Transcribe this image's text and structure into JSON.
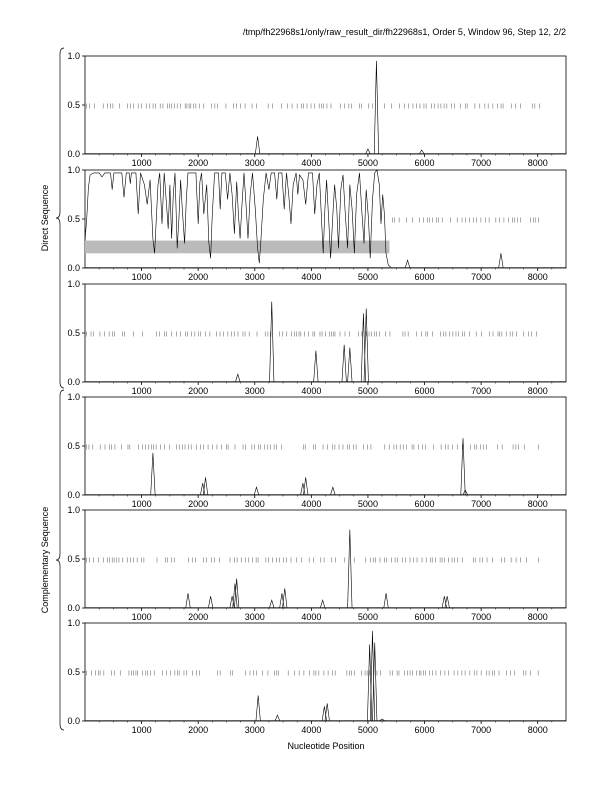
{
  "title": "/tmp/fh22968s1/only/raw_result_dir/fh22968s1, Order 5, Window 96, Step 12, 2/2",
  "groups": [
    {
      "label": "Direct Sequence"
    },
    {
      "label": "Complementary Sequence"
    }
  ],
  "chart_data": {
    "type": "line",
    "xlabel": "Nucleotide Position",
    "xlim": [
      0,
      8500
    ],
    "ylim": [
      0,
      1
    ],
    "x_ticks": [
      1000,
      2000,
      3000,
      4000,
      5000,
      6000,
      7000,
      8000
    ],
    "x_tick_labels": [
      "1000",
      "2000",
      "3000",
      "4000",
      "5000",
      "6000",
      "7000",
      "8000"
    ],
    "y_ticks": [
      0,
      0.5,
      1
    ],
    "y_tick_labels": [
      "0.0",
      "0.5",
      "1.0"
    ],
    "line_color": "#000000",
    "mark_color": "#555555",
    "band_color": "#bbbbbb",
    "panels": [
      {
        "group": "Direct Sequence",
        "peaks": [
          [
            3050,
            0.18
          ],
          [
            5150,
            0.95
          ],
          [
            5000,
            0.05
          ],
          [
            5950,
            0.04
          ]
        ],
        "mark_row_y": 0.49,
        "mark_ranges": [
          [
            0,
            5100
          ],
          [
            5200,
            8050
          ]
        ]
      },
      {
        "group": "Direct Sequence",
        "profile": [
          [
            0,
            0.28
          ],
          [
            30,
            0.5
          ],
          [
            60,
            0.82
          ],
          [
            90,
            0.95
          ],
          [
            150,
            0.97
          ],
          [
            250,
            0.97
          ],
          [
            300,
            0.93
          ],
          [
            350,
            0.97
          ],
          [
            450,
            0.97
          ],
          [
            480,
            0.8
          ],
          [
            510,
            0.97
          ],
          [
            650,
            0.97
          ],
          [
            690,
            0.72
          ],
          [
            730,
            0.97
          ],
          [
            780,
            0.97
          ],
          [
            800,
            0.86
          ],
          [
            820,
            0.97
          ],
          [
            900,
            0.97
          ],
          [
            940,
            0.55
          ],
          [
            980,
            0.97
          ],
          [
            1050,
            0.85
          ],
          [
            1100,
            0.65
          ],
          [
            1150,
            0.9
          ],
          [
            1200,
            0.3
          ],
          [
            1230,
            0.15
          ],
          [
            1260,
            0.5
          ],
          [
            1290,
            0.85
          ],
          [
            1320,
            0.97
          ],
          [
            1360,
            0.45
          ],
          [
            1400,
            0.97
          ],
          [
            1440,
            0.65
          ],
          [
            1470,
            0.4
          ],
          [
            1500,
            0.85
          ],
          [
            1530,
            0.3
          ],
          [
            1560,
            0.75
          ],
          [
            1590,
            0.97
          ],
          [
            1630,
            0.2
          ],
          [
            1660,
            0.5
          ],
          [
            1690,
            0.9
          ],
          [
            1720,
            0.6
          ],
          [
            1760,
            0.25
          ],
          [
            1790,
            0.7
          ],
          [
            1820,
            0.97
          ],
          [
            1900,
            0.97
          ],
          [
            1960,
            0.97
          ],
          [
            2000,
            0.45
          ],
          [
            2030,
            0.88
          ],
          [
            2060,
            0.97
          ],
          [
            2100,
            0.55
          ],
          [
            2150,
            0.85
          ],
          [
            2190,
            0.25
          ],
          [
            2220,
            0.1
          ],
          [
            2250,
            0.55
          ],
          [
            2290,
            0.97
          ],
          [
            2360,
            0.97
          ],
          [
            2390,
            0.6
          ],
          [
            2420,
            0.97
          ],
          [
            2480,
            0.97
          ],
          [
            2520,
            0.7
          ],
          [
            2560,
            0.97
          ],
          [
            2600,
            0.75
          ],
          [
            2640,
            0.35
          ],
          [
            2680,
            0.88
          ],
          [
            2710,
            0.55
          ],
          [
            2740,
            0.3
          ],
          [
            2780,
            0.7
          ],
          [
            2810,
            0.97
          ],
          [
            2850,
            0.6
          ],
          [
            2880,
            0.3
          ],
          [
            2920,
            0.75
          ],
          [
            2960,
            0.97
          ],
          [
            3010,
            0.6
          ],
          [
            3050,
            0.2
          ],
          [
            3080,
            0.05
          ],
          [
            3110,
            0.3
          ],
          [
            3150,
            0.7
          ],
          [
            3200,
            0.97
          ],
          [
            3250,
            0.8
          ],
          [
            3290,
            0.97
          ],
          [
            3350,
            0.97
          ],
          [
            3390,
            0.7
          ],
          [
            3420,
            0.97
          ],
          [
            3480,
            0.97
          ],
          [
            3520,
            0.6
          ],
          [
            3560,
            0.97
          ],
          [
            3600,
            0.75
          ],
          [
            3640,
            0.45
          ],
          [
            3680,
            0.85
          ],
          [
            3730,
            0.97
          ],
          [
            3760,
            0.75
          ],
          [
            3790,
            0.95
          ],
          [
            3850,
            0.9
          ],
          [
            3900,
            0.65
          ],
          [
            3950,
            0.97
          ],
          [
            4020,
            0.97
          ],
          [
            4060,
            0.55
          ],
          [
            4100,
            0.85
          ],
          [
            4140,
            0.97
          ],
          [
            4180,
            0.5
          ],
          [
            4210,
            0.15
          ],
          [
            4240,
            0.6
          ],
          [
            4270,
            0.9
          ],
          [
            4310,
            0.45
          ],
          [
            4340,
            0.1
          ],
          [
            4380,
            0.55
          ],
          [
            4410,
            0.85
          ],
          [
            4450,
            0.6
          ],
          [
            4480,
            0.2
          ],
          [
            4520,
            0.8
          ],
          [
            4560,
            0.95
          ],
          [
            4600,
            0.55
          ],
          [
            4640,
            0.2
          ],
          [
            4680,
            0.85
          ],
          [
            4720,
            0.6
          ],
          [
            4760,
            0.15
          ],
          [
            4800,
            0.75
          ],
          [
            4850,
            0.97
          ],
          [
            4890,
            0.6
          ],
          [
            4930,
            0.25
          ],
          [
            4970,
            0.8
          ],
          [
            5010,
            0.5
          ],
          [
            5040,
            0.1
          ],
          [
            5080,
            0.7
          ],
          [
            5120,
            0.97
          ],
          [
            5160,
            1.0
          ],
          [
            5200,
            0.85
          ],
          [
            5230,
            0.45
          ],
          [
            5260,
            0.75
          ],
          [
            5290,
            0.55
          ],
          [
            5320,
            0.15
          ],
          [
            5360,
            0.03
          ],
          [
            5400,
            0.01
          ]
        ],
        "peaks": [
          [
            5700,
            0.08
          ],
          [
            7350,
            0.15
          ]
        ],
        "band": [
          0,
          5380,
          0.15,
          0.28
        ],
        "mark_row_y": 0.49,
        "mark_ranges": [
          [
            5400,
            8050
          ]
        ]
      },
      {
        "group": "Direct Sequence",
        "peaks": [
          [
            2700,
            0.08
          ],
          [
            3300,
            0.82
          ],
          [
            4080,
            0.32
          ],
          [
            4580,
            0.38
          ],
          [
            4680,
            0.35
          ],
          [
            4920,
            0.7
          ],
          [
            4970,
            0.75
          ]
        ],
        "mark_row_y": 0.49,
        "mark_ranges": [
          [
            0,
            8050
          ]
        ]
      },
      {
        "group": "Complementary Sequence",
        "peaks": [
          [
            1200,
            0.43
          ],
          [
            2080,
            0.12
          ],
          [
            2130,
            0.18
          ],
          [
            3030,
            0.08
          ],
          [
            3850,
            0.12
          ],
          [
            3900,
            0.18
          ],
          [
            4380,
            0.08
          ],
          [
            6680,
            0.58
          ],
          [
            6720,
            0.05
          ]
        ],
        "mark_row_y": 0.49,
        "mark_ranges": [
          [
            0,
            8050
          ]
        ]
      },
      {
        "group": "Complementary Sequence",
        "peaks": [
          [
            1820,
            0.15
          ],
          [
            2220,
            0.12
          ],
          [
            2600,
            0.12
          ],
          [
            2650,
            0.25
          ],
          [
            2680,
            0.3
          ],
          [
            3300,
            0.08
          ],
          [
            3480,
            0.15
          ],
          [
            3530,
            0.2
          ],
          [
            4200,
            0.08
          ],
          [
            4680,
            0.8
          ],
          [
            5320,
            0.15
          ],
          [
            6350,
            0.12
          ],
          [
            6400,
            0.12
          ]
        ],
        "mark_row_y": 0.49,
        "mark_ranges": [
          [
            0,
            8050
          ]
        ]
      },
      {
        "group": "Complementary Sequence",
        "peaks": [
          [
            3060,
            0.26
          ],
          [
            3400,
            0.06
          ],
          [
            4230,
            0.15
          ],
          [
            4280,
            0.18
          ],
          [
            5030,
            0.78
          ],
          [
            5080,
            0.92
          ],
          [
            5120,
            0.8
          ],
          [
            5250,
            0.02
          ]
        ],
        "mark_row_y": 0.49,
        "mark_ranges": [
          [
            0,
            8050
          ]
        ]
      }
    ]
  }
}
